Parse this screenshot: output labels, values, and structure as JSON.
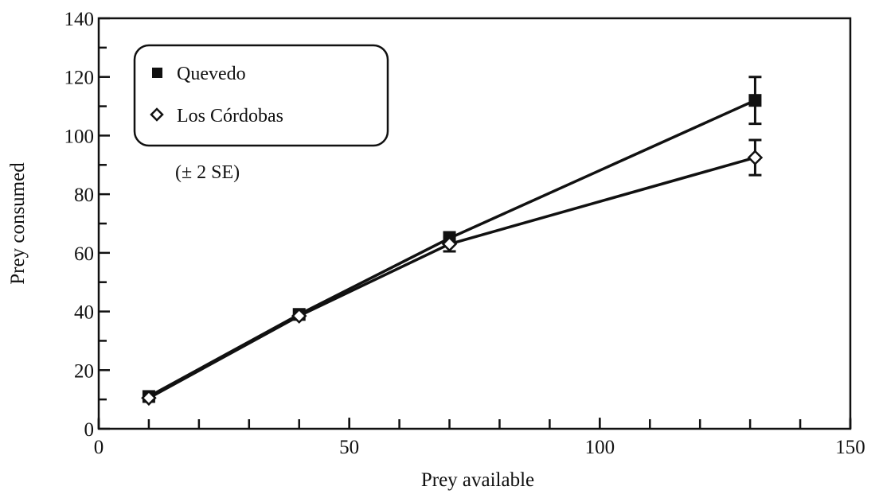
{
  "chart_data": {
    "type": "line",
    "xlabel": "Prey available",
    "ylabel": "Prey consumed",
    "xlim": [
      0,
      150
    ],
    "ylim": [
      0,
      140
    ],
    "x_ticks": [
      0,
      50,
      100,
      150
    ],
    "y_ticks": [
      0,
      20,
      40,
      60,
      80,
      100,
      120,
      140
    ],
    "grid": false,
    "legend_position": "top-left",
    "annotation": "(± 2 SE)",
    "series": [
      {
        "name": "Quevedo",
        "marker": "filled-square",
        "color": "#111111",
        "x": [
          10,
          40,
          70,
          131
        ],
        "y": [
          11,
          39,
          65,
          112
        ],
        "error": [
          0.5,
          1,
          2,
          8
        ]
      },
      {
        "name": "Los Córdobas",
        "marker": "open-diamond",
        "color": "#111111",
        "x": [
          10,
          40,
          70,
          131
        ],
        "y": [
          10.5,
          38.5,
          63,
          92.5
        ],
        "error": [
          0.5,
          1,
          2.5,
          6
        ]
      }
    ]
  }
}
